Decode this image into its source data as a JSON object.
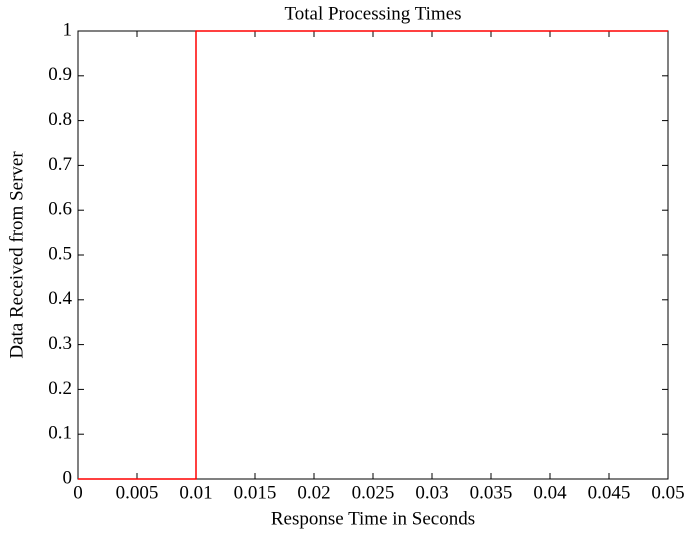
{
  "chart_data": {
    "type": "line",
    "title": "Total Processing Times",
    "x_label": "Response Time in Seconds",
    "y_label": "Data Received from Server",
    "x": [
      0,
      0.01,
      0.01,
      0.05
    ],
    "values": [
      0,
      0,
      1,
      1
    ],
    "color": "#ff0000",
    "xlim": [
      0,
      0.05
    ],
    "ylim": [
      0,
      1
    ],
    "xticks": [
      0,
      0.005,
      0.01,
      0.015,
      0.02,
      0.025,
      0.03,
      0.035,
      0.04,
      0.045,
      0.05
    ],
    "yticks": [
      0,
      0.1,
      0.2,
      0.3,
      0.4,
      0.5,
      0.6,
      0.7,
      0.8,
      0.9,
      1
    ],
    "grid": false
  }
}
